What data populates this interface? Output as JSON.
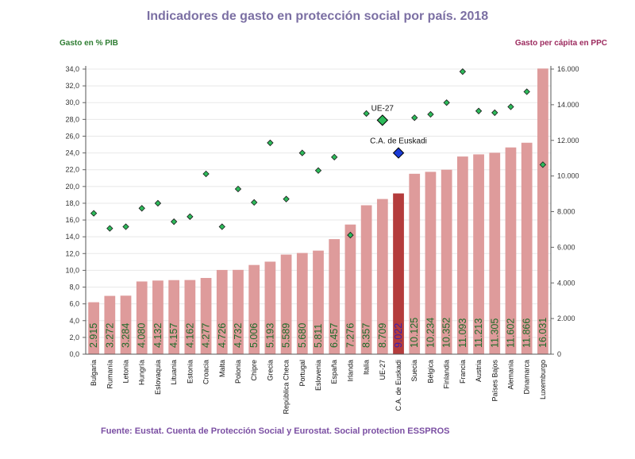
{
  "colors": {
    "title": "#7b6fa3",
    "left_axis_title": "#2e7d32",
    "right_axis_title": "#9c2a5e",
    "bar": "#de9b9b",
    "bar_highlight": "#b43c3c",
    "bar_label": "#1e6b28",
    "bar_label_highlight": "#3a1fb0",
    "marker": "#2dba5a",
    "marker_highlight": "#1a3bd6",
    "source": "#7b4fa3",
    "gridline": "#e8e8e8"
  },
  "chart_data": {
    "type": "bar",
    "title": "Indicadores de gasto en protección social por país. 2018",
    "y_left_label": "Gasto en % PIB",
    "y_right_label": "Gasto per cápita en PPC",
    "y_left_lim": [
      0,
      34
    ],
    "y_left_ticks": [
      "0,0",
      "2,0",
      "4,0",
      "6,0",
      "8,0",
      "10,0",
      "12,0",
      "14,0",
      "16,0",
      "18,0",
      "20,0",
      "22,0",
      "24,0",
      "26,0",
      "28,0",
      "30,0",
      "32,0",
      "34,0"
    ],
    "y_right_lim": [
      0,
      16000
    ],
    "y_right_ticks": [
      "0",
      "2.000",
      "4.000",
      "6.000",
      "8.000",
      "10.000",
      "12.000",
      "14.000",
      "16.000"
    ],
    "categories": [
      "Bulgaria",
      "Rumanía",
      "Letonia",
      "Hungría",
      "Eslovaquia",
      "Lituania",
      "Estonia",
      "Croacia",
      "Malta",
      "Polonia",
      "Chipre",
      "Grecia",
      "República Checa",
      "Portugal",
      "Eslovenia",
      "España",
      "Irlanda",
      "Italia",
      "UE-27",
      "C.A. de Euskadi",
      "Suecia",
      "Bélgica",
      "Finlandia",
      "Francia",
      "Austria",
      "Países Bajos",
      "Alemania",
      "Dinamarca",
      "Luxemburgo"
    ],
    "highlight_category": "C.A. de Euskadi",
    "series": [
      {
        "axis": "right",
        "kind": "bar",
        "values": [
          2915,
          3272,
          3284,
          4080,
          4132,
          4157,
          4162,
          4277,
          4726,
          4732,
          5006,
          5193,
          5589,
          5680,
          5811,
          6457,
          7276,
          8357,
          8709,
          9022,
          10125,
          10234,
          10352,
          11093,
          11213,
          11305,
          11602,
          11866,
          16031
        ],
        "labels": [
          "2.915",
          "3.272",
          "3.284",
          "4.080",
          "4.132",
          "4.157",
          "4.162",
          "4.277",
          "4.726",
          "4.732",
          "5.006",
          "5.193",
          "5.589",
          "5.680",
          "5.811",
          "6.457",
          "7.276",
          "8.357",
          "8.709",
          "9.022",
          "10.125",
          "10.234",
          "10.352",
          "11.093",
          "11.213",
          "11.305",
          "11.602",
          "11.866",
          "16.031"
        ]
      },
      {
        "axis": "left",
        "kind": "marker",
        "values": [
          16.8,
          15.0,
          15.2,
          17.4,
          18.0,
          15.8,
          16.4,
          21.5,
          15.2,
          19.7,
          18.1,
          25.2,
          18.5,
          24.0,
          21.9,
          23.5,
          14.2,
          28.7,
          27.9,
          24.0,
          28.2,
          28.6,
          30.0,
          33.7,
          29.0,
          28.8,
          29.5,
          31.3,
          22.6
        ]
      }
    ],
    "annotations": [
      {
        "category": "UE-27",
        "text": "UE-27"
      },
      {
        "category": "C.A. de Euskadi",
        "text": "C.A. de Euskadi"
      }
    ],
    "source": "Fuente: Eustat. Cuenta de Protección Social y Eurostat. Social protection ESSPROS"
  }
}
